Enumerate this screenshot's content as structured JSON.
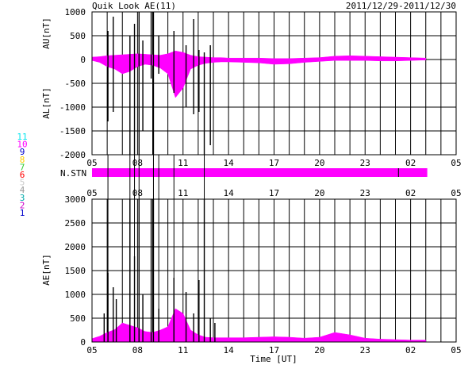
{
  "header": {
    "title": "Quik Look AE(11)",
    "date_range": "2011/12/29-2011/12/30"
  },
  "legend": {
    "entries": [
      {
        "label": "11",
        "color": "#00e5ee"
      },
      {
        "label": "10",
        "color": "#ff00ff"
      },
      {
        "label": "9",
        "color": "#0000cc"
      },
      {
        "label": "8",
        "color": "#ffcc00"
      },
      {
        "label": "7",
        "color": "#33cc33"
      },
      {
        "label": "6",
        "color": "#ff0000"
      },
      {
        "label": "5",
        "color": "#cccccc"
      },
      {
        "label": "4",
        "color": "#999999"
      },
      {
        "label": "3",
        "color": "#00aaaa"
      },
      {
        "label": "2",
        "color": "#cc00cc"
      },
      {
        "label": "1",
        "color": "#0000cc"
      }
    ]
  },
  "colors": {
    "fill": "#ff00ff",
    "line": "#000000",
    "grid": "#000000"
  },
  "chart_data": [
    {
      "type": "area",
      "ylabel_upper": "AU[nT]",
      "ylabel_lower": "AL[nT]",
      "ylim": [
        -2000,
        1000
      ],
      "yticks": [
        "1000",
        "500",
        "0",
        "-500",
        "-1000",
        "-1500",
        "-2000"
      ],
      "xticks": [
        "05",
        "08",
        "11",
        "14",
        "17",
        "20",
        "23",
        "02",
        "05"
      ],
      "x": [
        5,
        5.5,
        6,
        6.5,
        7,
        7.5,
        8,
        8.5,
        9,
        9.5,
        10,
        10.5,
        11,
        11.5,
        12,
        12.5,
        13,
        13.5,
        14,
        15,
        16,
        17,
        18,
        19,
        20,
        21,
        22,
        23,
        24,
        25,
        26,
        27
      ],
      "series": [
        {
          "values": [
            50,
            60,
            80,
            90,
            100,
            110,
            120,
            110,
            100,
            90,
            120,
            180,
            150,
            90,
            60,
            50,
            40,
            40,
            30,
            30,
            30,
            20,
            20,
            30,
            40,
            70,
            80,
            70,
            60,
            50,
            40,
            30
          ]
        },
        {
          "values": [
            -20,
            -60,
            -150,
            -200,
            -300,
            -250,
            -150,
            -100,
            -120,
            -180,
            -300,
            -800,
            -600,
            -200,
            -120,
            -80,
            -60,
            -50,
            -50,
            -60,
            -70,
            -100,
            -90,
            -60,
            -40,
            -20,
            -20,
            -20,
            -30,
            -30,
            -20,
            -10
          ]
        }
      ],
      "spikes": [
        {
          "x": 6.05,
          "upper": 600,
          "lower": -1300
        },
        {
          "x": 6.4,
          "upper": 900,
          "lower": -1100
        },
        {
          "x": 7.5,
          "upper": 500,
          "lower": -2000
        },
        {
          "x": 7.8,
          "upper": 750,
          "lower": -2000
        },
        {
          "x": 8.1,
          "upper": 1000,
          "lower": -2000
        },
        {
          "x": 8.35,
          "upper": 400,
          "lower": -1500
        },
        {
          "x": 8.9,
          "upper": 1000,
          "lower": -400
        },
        {
          "x": 9.05,
          "upper": 1000,
          "lower": -2000
        },
        {
          "x": 9.4,
          "upper": 500,
          "lower": -300
        },
        {
          "x": 10.4,
          "upper": 600,
          "lower": -700
        },
        {
          "x": 11.2,
          "upper": 300,
          "lower": -1000
        },
        {
          "x": 11.7,
          "upper": 850,
          "lower": -1150
        },
        {
          "x": 12.05,
          "upper": 200,
          "lower": -1100
        },
        {
          "x": 12.4,
          "upper": 150,
          "lower": -2000
        },
        {
          "x": 12.8,
          "upper": 300,
          "lower": -1800
        }
      ]
    },
    {
      "type": "bar",
      "label": "N.STN",
      "bar_start": 5.0,
      "bar_end": 27.1,
      "tick_x": 25.2
    },
    {
      "type": "area",
      "ylabel": "AE[nT]",
      "xlabel": "Time [UT]",
      "ylim": [
        0,
        3000
      ],
      "yticks": [
        "3000",
        "2500",
        "2000",
        "1500",
        "1000",
        "500",
        "0"
      ],
      "xticks": [
        "05",
        "08",
        "11",
        "14",
        "17",
        "20",
        "23",
        "02",
        "05"
      ],
      "x": [
        5,
        5.5,
        6,
        6.5,
        7,
        7.5,
        8,
        8.5,
        9,
        9.5,
        10,
        10.5,
        11,
        11.5,
        12,
        12.5,
        13,
        13.5,
        14,
        15,
        16,
        17,
        18,
        19,
        20,
        21,
        22,
        23,
        24,
        25,
        26,
        27
      ],
      "series": [
        {
          "values": [
            70,
            120,
            200,
            260,
            400,
            350,
            300,
            220,
            200,
            250,
            320,
            700,
            600,
            250,
            150,
            100,
            90,
            90,
            90,
            90,
            100,
            110,
            100,
            80,
            100,
            200,
            150,
            80,
            60,
            50,
            40,
            40
          ]
        }
      ],
      "spikes": [
        {
          "x": 5.8,
          "value": 600
        },
        {
          "x": 6.05,
          "value": 1450
        },
        {
          "x": 6.4,
          "value": 1150
        },
        {
          "x": 6.6,
          "value": 900
        },
        {
          "x": 7.5,
          "value": 3000
        },
        {
          "x": 7.8,
          "value": 1800
        },
        {
          "x": 8.1,
          "value": 3000
        },
        {
          "x": 8.35,
          "value": 1000
        },
        {
          "x": 8.9,
          "value": 3000
        },
        {
          "x": 9.05,
          "value": 3000
        },
        {
          "x": 9.4,
          "value": 700
        },
        {
          "x": 10.4,
          "value": 1350
        },
        {
          "x": 11.2,
          "value": 1050
        },
        {
          "x": 11.7,
          "value": 600
        },
        {
          "x": 12.05,
          "value": 1300
        },
        {
          "x": 12.4,
          "value": 3000
        },
        {
          "x": 12.8,
          "value": 500
        },
        {
          "x": 13.1,
          "value": 400
        }
      ]
    }
  ]
}
